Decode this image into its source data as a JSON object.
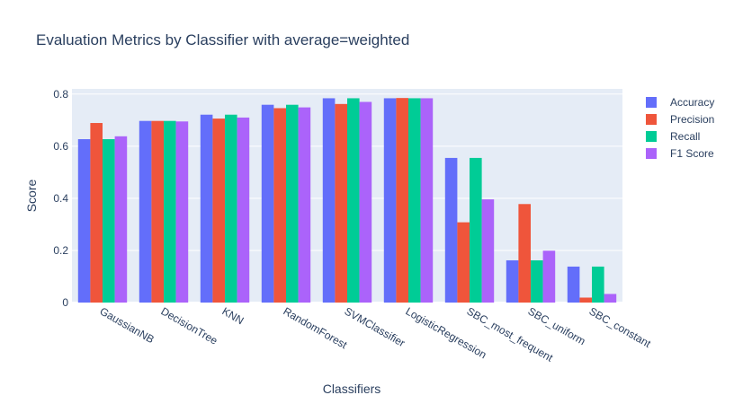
{
  "chart_data": {
    "type": "bar",
    "title": "Evaluation Metrics by Classifier with average=weighted",
    "xlabel": "Classifiers",
    "ylabel": "Score",
    "ylim": [
      0,
      0.82
    ],
    "yticks": [
      0,
      0.2,
      0.4,
      0.6,
      0.8
    ],
    "ytick_labels": [
      "0",
      "0.2",
      "0.4",
      "0.6",
      "0.8"
    ],
    "grid": true,
    "legend_position": "top-right",
    "categories": [
      "GaussianNB",
      "DecisionTree",
      "KNN",
      "RandomForest",
      "SVMClassifier",
      "LogisticRegression",
      "SBC_most_frequent",
      "SBC_uniform",
      "SBC_constant"
    ],
    "series": [
      {
        "name": "Accuracy",
        "color": "#636efa",
        "values": [
          0.627,
          0.697,
          0.721,
          0.759,
          0.784,
          0.784,
          0.555,
          0.162,
          0.138
        ]
      },
      {
        "name": "Precision",
        "color": "#ef553b",
        "values": [
          0.689,
          0.697,
          0.706,
          0.746,
          0.762,
          0.785,
          0.308,
          0.378,
          0.019
        ]
      },
      {
        "name": "Recall",
        "color": "#00cc96",
        "values": [
          0.627,
          0.697,
          0.721,
          0.759,
          0.784,
          0.784,
          0.555,
          0.162,
          0.138
        ]
      },
      {
        "name": "F1 Score",
        "color": "#ab63fa",
        "values": [
          0.638,
          0.695,
          0.71,
          0.749,
          0.77,
          0.784,
          0.396,
          0.199,
          0.033
        ]
      }
    ]
  }
}
